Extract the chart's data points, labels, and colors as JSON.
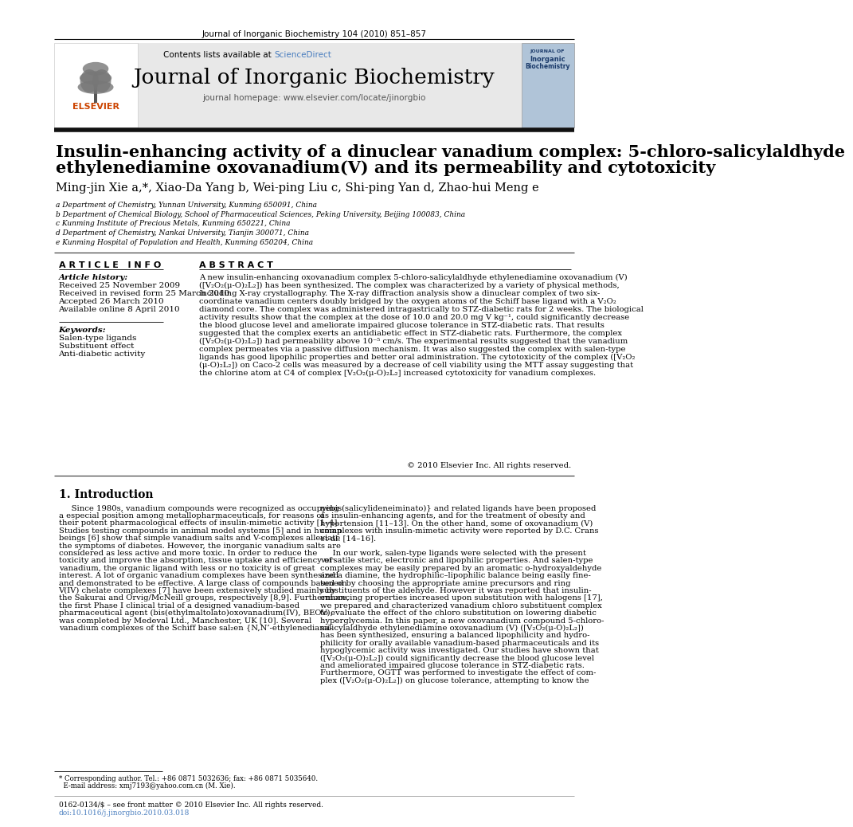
{
  "page_bg": "#ffffff",
  "top_journal_ref": "Journal of Inorganic Biochemistry 104 (2010) 851–857",
  "header_bg": "#e8e8e8",
  "sciencedirect_color": "#4a7ebf",
  "journal_title": "Journal of Inorganic Biochemistry",
  "journal_homepage": "journal homepage: www.elsevier.com/locate/jinorgbio",
  "article_title_line1": "Insulin-enhancing activity of a dinuclear vanadium complex: 5-chloro-salicylaldhyde",
  "article_title_line2": "ethylenediamine oxovanadium(V) and its permeability and cytotoxicity",
  "author_line": "Ming-jin Xie a,*, Xiao-Da Yang b, Wei-ping Liu c, Shi-ping Yan d, Zhao-hui Meng e",
  "affil_a": "a Department of Chemistry, Yunnan University, Kunming 650091, China",
  "affil_b": "b Department of Chemical Biology, School of Pharmaceutical Sciences, Peking University, Beijing 100083, China",
  "affil_c": "c Kunming Institute of Precious Metals, Kunming 650221, China",
  "affil_d": "d Department of Chemistry, Nankai University, Tianjin 300071, China",
  "affil_e": "e Kunming Hospital of Population and Health, Kunming 650204, China",
  "article_info_title": "A R T I C L E   I N F O",
  "abstract_title": "A B S T R A C T",
  "article_history_label": "Article history:",
  "received": "Received 25 November 2009",
  "revised": "Received in revised form 25 March 2010",
  "accepted": "Accepted 26 March 2010",
  "available": "Available online 8 April 2010",
  "keywords_label": "Keywords:",
  "keyword1": "Salen-type ligands",
  "keyword2": "Substituent effect",
  "keyword3": "Anti-diabetic activity",
  "abstract_text": "A new insulin-enhancing oxovanadium complex 5-chloro-salicylaldhyde ethylenediamine oxovanadium (V)\n([V₂O₂(μ-O)₂L₂]) has been synthesized. The complex was characterized by a variety of physical methods,\nincluding X-ray crystallography. The X-ray diffraction analysis show a dinuclear complex of two six-\ncoordinate vanadium centers doubly bridged by the oxygen atoms of the Schiff base ligand with a V₂O₂\ndiamond core. The complex was administered intragastrically to STZ-diabetic rats for 2 weeks. The biological\nactivity results show that the complex at the dose of 10.0 and 20.0 mg V kg⁻¹, could significantly decrease\nthe blood glucose level and ameliorate impaired glucose tolerance in STZ-diabetic rats. That results\nsuggested that the complex exerts an antidiabetic effect in STZ-diabetic rats. Furthermore, the complex\n([V₂O₂(μ-O)₂L₂]) had permeability above 10⁻⁵ cm/s. The experimental results suggested that the vanadium\ncomplex permeates via a passive diffusion mechanism. It was also suggested the complex with salen-type\nligands has good lipophilic properties and better oral administration. The cytotoxicity of the complex ([V₂O₂\n(μ-O)₂L₂]) on Caco-2 cells was measured by a decrease of cell viability using the MTT assay suggesting that\nthe chlorine atom at C4 of complex [V₂O₂(μ-O)₂L₂] increased cytotoxicity for vanadium complexes.",
  "copyright": "© 2010 Elsevier Inc. All rights reserved.",
  "intro_title": "1. Introduction",
  "intro_col1_lines": [
    "     Since 1980s, vanadium compounds were recognized as occupying",
    "a especial position among metallopharmaceuticals, for reasons of",
    "their potent pharmacological effects of insulin-mimetic activity [1–4].",
    "Studies testing compounds in animal model systems [5] and in human",
    "beings [6] show that simple vanadium salts and V-complexes alleviate",
    "the symptoms of diabetes. However, the inorganic vanadium salts are",
    "considered as less active and more toxic. In order to reduce the",
    "toxicity and improve the absorption, tissue uptake and efficiency of",
    "vanadium, the organic ligand with less or no toxicity is of great",
    "interest. A lot of organic vanadium complexes have been synthesized",
    "and demonstrated to be effective. A large class of compounds based on",
    "V(IV) chelate complexes [7] have been extensively studied mainly by",
    "the Sakurai and Orvig/McNeill groups, respectively [8,9]. Furthermore,",
    "the first Phase I clinical trial of a designed vanadium-based",
    "pharmaceutical agent (bis(ethylmaltolato)oxovanadium(IV), BEOV),",
    "was completed by Medeval Ltd., Manchester, UK [10]. Several",
    "vanadium complexes of the Schiff base sal₂en {N,N’-ethylenediami-"
  ],
  "intro_col2_lines": [
    "nebis(salicylideneiminato)} and related ligands have been proposed",
    "as insulin-enhancing agents, and for the treatment of obesity and",
    "hypertension [11–13]. On the other hand, some of oxovanadium (V)",
    "complexes with insulin-mimetic activity were reported by D.C. Crans",
    "et al. [14–16].",
    "",
    "     In our work, salen-type ligands were selected with the present",
    "versatile steric, electronic and lipophilic properties. And salen-type",
    "complexes may be easily prepared by an aromatic o-hydroxyaldehyde",
    "and a diamine, the hydrophilic–lipophilic balance being easily fine-",
    "tuned by choosing the appropriate amine precursors and ring",
    "substituents of the aldehyde. However it was reported that insulin-",
    "enhancing properties increased upon substitution with halogens [17],",
    "we prepared and characterized vanadium chloro substituent complex",
    "to evaluate the effect of the chloro substitution on lowering diabetic",
    "hyperglycemia. In this paper, a new oxovanadium compound 5-chloro-",
    "salicylaldhyde ethylenediamine oxovanadium (V) ([V₂O₂(μ-O)₂L₂])",
    "has been synthesized, ensuring a balanced lipophilicity and hydro-",
    "philicity for orally available vanadium-based pharmaceuticals and its",
    "hypoglycemic activity was investigated. Our studies have shown that",
    "([V₂O₂(μ-O)₂L₂]) could significantly decrease the blood glucose level",
    "and ameliorated impaired glucose tolerance in STZ-diabetic rats.",
    "Furthermore, OGTT was performed to investigate the effect of com-",
    "plex ([V₂O₂(μ-O)₂L₂]) on glucose tolerance, attempting to know the"
  ],
  "footnote_star": "* Corresponding author. Tel.: +86 0871 5032636; fax: +86 0871 5035640.",
  "footnote_email": "  E-mail address: xmj7193@yahoo.com.cn (M. Xie).",
  "footer_text1": "0162-0134/$ – see front matter © 2010 Elsevier Inc. All rights reserved.",
  "footer_text2": "doi:10.1016/j.jinorgbio.2010.03.018"
}
